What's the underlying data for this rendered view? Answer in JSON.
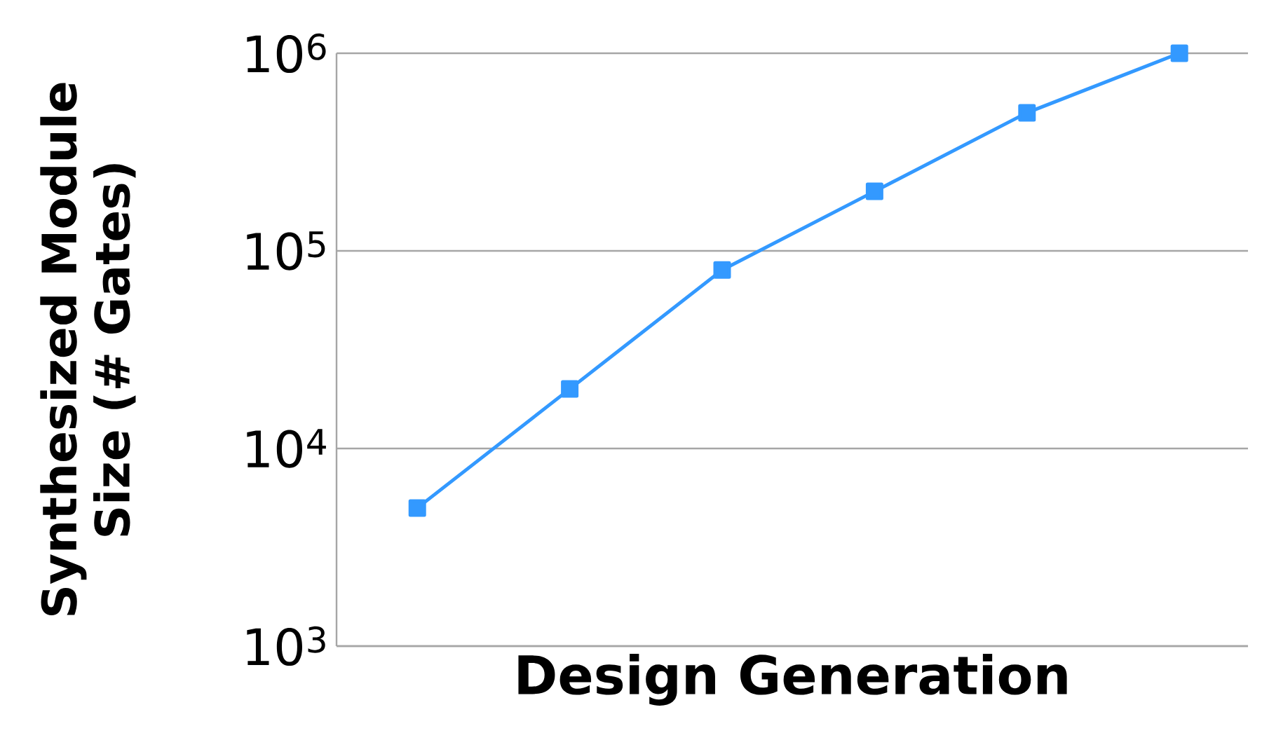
{
  "chart_data": {
    "type": "line",
    "xlabel": "Design Generation",
    "ylabel": "Synthesized Module Size (# Gates)",
    "categories": [
      null,
      null,
      null,
      null,
      null,
      null
    ],
    "series": [
      {
        "color": "#3399ff",
        "values": [
          5000,
          20000,
          80000,
          200000,
          500000,
          1000000
        ]
      }
    ],
    "log": "y",
    "ylim": [
      1000,
      1000000
    ],
    "yticks": [
      {
        "value": 1000,
        "label": "10$^{3}$"
      },
      {
        "value": 10000,
        "label": "10$^{4}$"
      },
      {
        "value": 100000,
        "label": "10$^{5}$"
      },
      {
        "value": 1000000,
        "label": "10$^{6}$"
      }
    ],
    "grid": "y",
    "marker": "square",
    "line_style": "solid"
  }
}
